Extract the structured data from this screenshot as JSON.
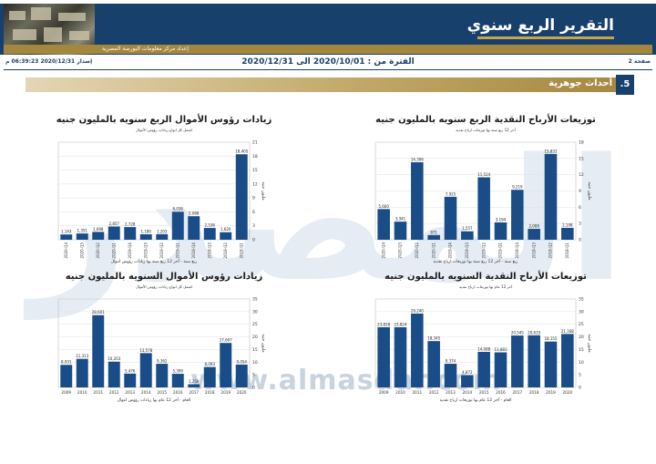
{
  "header": {
    "title": "التقرير الربع سنوي",
    "credit": "إعداد مركز معلومات البورصة المصرية"
  },
  "meta": {
    "page": "صفحة 2",
    "period": "الفترة من : 2020/10/01 الى 2020/12/31",
    "issued": "إصدار 2020/12/31 06:39:23 م"
  },
  "section": {
    "number": ".5",
    "title": "أحداث جوهرية"
  },
  "watermark": {
    "text": "المصدر",
    "url": "www.almasdar.com"
  },
  "colors": {
    "navy": "#17406d",
    "gold": "#a4873f",
    "bar": "#1a4d87"
  },
  "chart_data": [
    {
      "id": "quarterly-capital-increase",
      "type": "bar",
      "title": "زيادات رؤوس الأموال الربع سنويه بالمليون جنيه",
      "subtitle": "اشمل كل انواع زيادات رؤوس الأموال",
      "xlabel": "ربع سنة - آخر 12 ربع سنة بها زيادات رؤوس أموال",
      "ylabel": "مليون جنيه",
      "categories": [
        "2020-Q4",
        "2020-Q3",
        "2020-Q2",
        "2020-Q1",
        "2019-Q4",
        "2019-Q3",
        "2019-Q2",
        "2019-Q1",
        "2018-Q4",
        "2018-Q3",
        "2018-Q2",
        "2018-Q1"
      ],
      "values": [
        1143,
        1351,
        1698,
        2857,
        2728,
        1180,
        1203,
        6036,
        5068,
        2536,
        1620,
        18405
      ],
      "labels": [
        "1,143",
        "1,351",
        "1,698",
        "2,857",
        "2,728",
        "1,180",
        "1,203",
        "6,036",
        "5,068",
        "2,536",
        "1,620",
        "18,405"
      ],
      "ylim": [
        0,
        21000
      ],
      "yticks": [
        0,
        3000,
        6000,
        9000,
        12000,
        15000,
        18000,
        21000
      ],
      "ytick_labels": [
        "0",
        "3",
        "6",
        "9",
        "12",
        "15",
        "18",
        "21"
      ]
    },
    {
      "id": "quarterly-cash-dividends",
      "type": "bar",
      "title": "توزيعات الأرباح النقدية الربع سنويه بالمليون جنيه",
      "subtitle": "آخر 12 ربع سنة بها توزيعات ارباح نقدية",
      "xlabel": "ربع سنة - آخر 12 ربع سنة بها توزيعات ارباح نقدية",
      "ylabel": "مليون جنيه",
      "categories": [
        "2020-Q4",
        "2020-Q3",
        "2020-Q2",
        "2020-Q1",
        "2019-Q4",
        "2019-Q3",
        "2019-Q2",
        "2019-Q1",
        "2018-Q4",
        "2018-Q3",
        "2018-Q2",
        "2018-Q1"
      ],
      "values": [
        5660,
        3341,
        14306,
        871,
        7925,
        1557,
        11524,
        3194,
        9219,
        2008,
        15832,
        2198
      ],
      "labels": [
        "5,660",
        "3,341",
        "14,306",
        "871",
        "7,925",
        "1,557",
        "11,524",
        "3,194",
        "9,219",
        "2,008",
        "15,832",
        "2,198"
      ],
      "ylim": [
        0,
        18000
      ],
      "yticks": [
        0,
        3000,
        6000,
        9000,
        12000,
        15000,
        18000
      ],
      "ytick_labels": [
        "0",
        "3",
        "6",
        "9",
        "12",
        "15",
        "18"
      ]
    },
    {
      "id": "annual-capital-increase",
      "type": "bar",
      "title": "زيادات رؤوس الأموال السنويه بالمليون جنيه",
      "subtitle": "اشمل كل انواع زيادات رؤوس الأموال",
      "xlabel": "العام - آخر 12 عام بها زيادات رؤوس أموال",
      "ylabel": "مليون جنيه",
      "categories": [
        "2009",
        "2010",
        "2011",
        "2012",
        "2013",
        "2014",
        "2015",
        "2016",
        "2017",
        "2018",
        "2019",
        "2020"
      ],
      "values": [
        8931,
        11313,
        28601,
        10203,
        5476,
        13578,
        9362,
        5399,
        1259,
        8093,
        17607,
        9054
      ],
      "labels": [
        "8,931",
        "11,313",
        "28,601",
        "10,203",
        "5,476",
        "13,578",
        "9,362",
        "5,399",
        "1,259",
        "8,093",
        "17,607",
        "9,054"
      ],
      "ylim": [
        0,
        35000
      ],
      "yticks": [
        0,
        5000,
        10000,
        15000,
        20000,
        25000,
        30000,
        35000
      ],
      "ytick_labels": [
        "0",
        "5",
        "10",
        "15",
        "20",
        "25",
        "30",
        "35"
      ]
    },
    {
      "id": "annual-cash-dividends",
      "type": "bar",
      "title": "توزيعات الأرباح النقدية السنويه بالمليون جنيه",
      "subtitle": "آخر 12 عام بها توزيعات ارباح نقدية",
      "xlabel": "العام - آخر 12 عام بها توزيعات ارباح نقدية",
      "ylabel": "مليون جنيه",
      "categories": [
        "2009",
        "2010",
        "2011",
        "2012",
        "2013",
        "2014",
        "2015",
        "2016",
        "2017",
        "2018",
        "2019",
        "2020"
      ],
      "values": [
        23828,
        23824,
        29240,
        18345,
        9374,
        4872,
        14088,
        13883,
        20545,
        20633,
        18155,
        21168
      ],
      "labels": [
        "23,828",
        "23,824",
        "29,240",
        "18,345",
        "9,374",
        "4,872",
        "14,088",
        "13,883",
        "20,545",
        "20,633",
        "18,155",
        "21,168"
      ],
      "ylim": [
        0,
        35000
      ],
      "yticks": [
        0,
        5000,
        10000,
        15000,
        20000,
        25000,
        30000,
        35000
      ],
      "ytick_labels": [
        "0",
        "5",
        "10",
        "15",
        "20",
        "25",
        "30",
        "35"
      ]
    }
  ]
}
